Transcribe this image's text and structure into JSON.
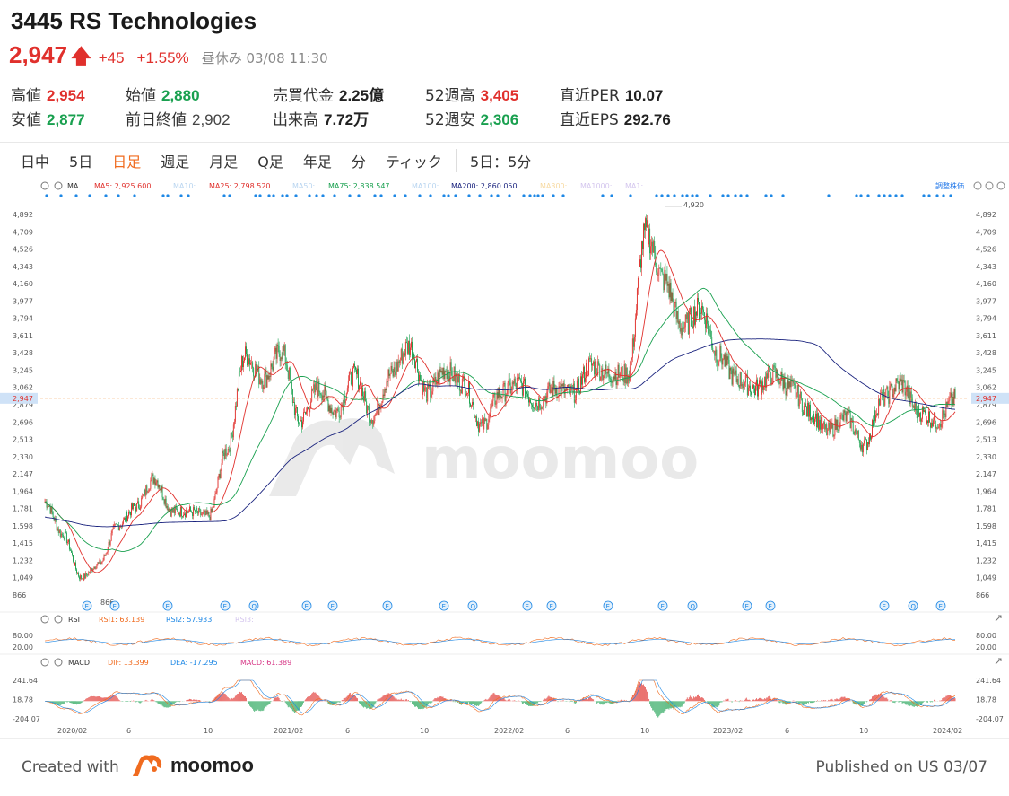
{
  "header": {
    "title": "3445 RS Technologies",
    "price": "2,947",
    "change": "+45",
    "change_pct": "+1.55%",
    "status": "昼休み 03/08 11:30"
  },
  "stats": [
    {
      "label": "高値",
      "value": "2,954",
      "color": "red"
    },
    {
      "label": "始値",
      "value": "2,880",
      "color": "green"
    },
    {
      "label": "売買代金",
      "value": "2.25億",
      "color": "dark"
    },
    {
      "label": "52週高",
      "value": "3,405",
      "color": "red"
    },
    {
      "label": "直近PER",
      "value": "10.07",
      "color": "dark"
    },
    {
      "label": "安値",
      "value": "2,877",
      "color": "green"
    },
    {
      "label": "前日終値",
      "value": "2,902",
      "color": "dark_normal"
    },
    {
      "label": "出来高",
      "value": "7.72万",
      "color": "dark"
    },
    {
      "label": "52週安",
      "value": "2,306",
      "color": "green"
    },
    {
      "label": "直近EPS",
      "value": "292.76",
      "color": "dark"
    }
  ],
  "tabs": [
    "日中",
    "5日",
    "日足",
    "週足",
    "月足",
    "Q足",
    "年足",
    "分",
    "ティック"
  ],
  "active_tab": "日足",
  "extra_tab": "5日：5分",
  "indicator_bar": {
    "ma_label": "MA",
    "ma_items": [
      {
        "text": "MA5: 2,925.600",
        "color": "#e0302c",
        "arrow": true
      },
      {
        "text": "MA10:",
        "color": "#b9d5f0",
        "arrow": false
      },
      {
        "text": "MA25: 2,798.520",
        "color": "#e0302c",
        "arrow": true
      },
      {
        "text": "MA50:",
        "color": "#b9d5f0",
        "arrow": false
      },
      {
        "text": "MA75: 2,838.547",
        "color": "#19a04f",
        "arrow": true
      },
      {
        "text": "MA100:",
        "color": "#b9d5f0",
        "arrow": false
      },
      {
        "text": "MA200: 2,860.050",
        "color": "#1a237e",
        "arrow": true
      },
      {
        "text": "MA300:",
        "color": "#f7d9a0",
        "arrow": false
      },
      {
        "text": "MA1000:",
        "color": "#d4c6ee",
        "arrow": false
      },
      {
        "text": "MA1:",
        "color": "#d4c6ee",
        "arrow": false
      }
    ],
    "adjust_label": "調整株価"
  },
  "rsi_bar": {
    "label": "RSI",
    "rsi1": "RSI1: 63.139",
    "rsi2": "RSI2: 57.933",
    "rsi3": "RSI3:"
  },
  "macd_bar": {
    "label": "MACD",
    "dif": "DIF: 13.399",
    "dea": "DEA: -17.295",
    "macd": "MACD: 61.389"
  },
  "price_axis_labels": [
    "4,892",
    "4,709",
    "4,526",
    "4,343",
    "4,160",
    "3,977",
    "3,794",
    "3,611",
    "3,428",
    "3,245",
    "3,062",
    "2,879",
    "2,696",
    "2,513",
    "2,330",
    "2,147",
    "1,964",
    "1,781",
    "1,598",
    "1,415",
    "1,232",
    "1,049",
    "866"
  ],
  "current_price_tag": "2,947",
  "rsi_axis_labels": [
    "80.00",
    "20.00"
  ],
  "macd_axis_labels": [
    "241.64",
    "18.78",
    "-204.07"
  ],
  "x_axis_labels": [
    "2020/02",
    "6",
    "10",
    "2021/02",
    "6",
    "10",
    "2022/02",
    "6",
    "10",
    "2023/02",
    "6",
    "10",
    "2024/02"
  ],
  "annotations": {
    "high": "4,920",
    "low": "866"
  },
  "watermark": "moomoo",
  "footer": {
    "created": "Created with",
    "brand": "moomoo",
    "published": "Published on US 03/07"
  },
  "colors": {
    "up": "#e0302c",
    "down": "#19a04f",
    "accent": "#f06b1f",
    "ma5": "#e0302c",
    "ma75": "#19a04f",
    "ma200": "#1a237e"
  },
  "chart_data": {
    "type": "candlestick",
    "y_axis_range": [
      866,
      4892
    ],
    "x_range": [
      "2020/01",
      "2024/03"
    ],
    "close_series": [
      {
        "date": "2020-01",
        "close": 1850
      },
      {
        "date": "2020-02",
        "close": 1500
      },
      {
        "date": "2020-03",
        "close": 1050
      },
      {
        "date": "2020-04",
        "close": 1200
      },
      {
        "date": "2020-05",
        "close": 1600
      },
      {
        "date": "2020-06",
        "close": 1800
      },
      {
        "date": "2020-07",
        "close": 2100
      },
      {
        "date": "2020-08",
        "close": 1750
      },
      {
        "date": "2020-09",
        "close": 1750
      },
      {
        "date": "2020-10",
        "close": 1700
      },
      {
        "date": "2020-11",
        "close": 2400
      },
      {
        "date": "2020-12",
        "close": 3400
      },
      {
        "date": "2021-01",
        "close": 3150
      },
      {
        "date": "2021-02",
        "close": 3450
      },
      {
        "date": "2021-03",
        "close": 2700
      },
      {
        "date": "2021-04",
        "close": 3050
      },
      {
        "date": "2021-05",
        "close": 2800
      },
      {
        "date": "2021-06",
        "close": 3200
      },
      {
        "date": "2021-07",
        "close": 2750
      },
      {
        "date": "2021-08",
        "close": 3200
      },
      {
        "date": "2021-09",
        "close": 3500
      },
      {
        "date": "2021-10",
        "close": 3000
      },
      {
        "date": "2021-11",
        "close": 3250
      },
      {
        "date": "2021-12",
        "close": 3100
      },
      {
        "date": "2022-01",
        "close": 2650
      },
      {
        "date": "2022-02",
        "close": 3000
      },
      {
        "date": "2022-03",
        "close": 3100
      },
      {
        "date": "2022-04",
        "close": 2900
      },
      {
        "date": "2022-05",
        "close": 3050
      },
      {
        "date": "2022-06",
        "close": 3000
      },
      {
        "date": "2022-07",
        "close": 3300
      },
      {
        "date": "2022-08",
        "close": 3200
      },
      {
        "date": "2022-09",
        "close": 3200
      },
      {
        "date": "2022-10",
        "close": 4700
      },
      {
        "date": "2022-11",
        "close": 4200
      },
      {
        "date": "2022-12",
        "close": 3700
      },
      {
        "date": "2023-01",
        "close": 3900
      },
      {
        "date": "2023-02",
        "close": 3400
      },
      {
        "date": "2023-03",
        "close": 3150
      },
      {
        "date": "2023-04",
        "close": 3050
      },
      {
        "date": "2023-05",
        "close": 3200
      },
      {
        "date": "2023-06",
        "close": 3050
      },
      {
        "date": "2023-07",
        "close": 2800
      },
      {
        "date": "2023-08",
        "close": 2600
      },
      {
        "date": "2023-09",
        "close": 2750
      },
      {
        "date": "2023-10",
        "close": 2450
      },
      {
        "date": "2023-11",
        "close": 2950
      },
      {
        "date": "2023-12",
        "close": 3100
      },
      {
        "date": "2024-01",
        "close": 2800
      },
      {
        "date": "2024-02",
        "close": 2700
      },
      {
        "date": "2024-03",
        "close": 2947
      }
    ],
    "ma_values": {
      "MA5": 2925.6,
      "MA25": 2798.52,
      "MA75": 2838.547,
      "MA200": 2860.05
    },
    "rsi": {
      "RSI1": 63.139,
      "RSI2": 57.933,
      "levels": [
        80,
        20
      ]
    },
    "macd": {
      "DIF": 13.399,
      "DEA": -17.295,
      "MACD": 61.389,
      "range": [
        -204.07,
        241.64
      ]
    },
    "annotations": [
      {
        "label": "4,920",
        "kind": "high"
      },
      {
        "label": "866",
        "kind": "low"
      }
    ]
  }
}
